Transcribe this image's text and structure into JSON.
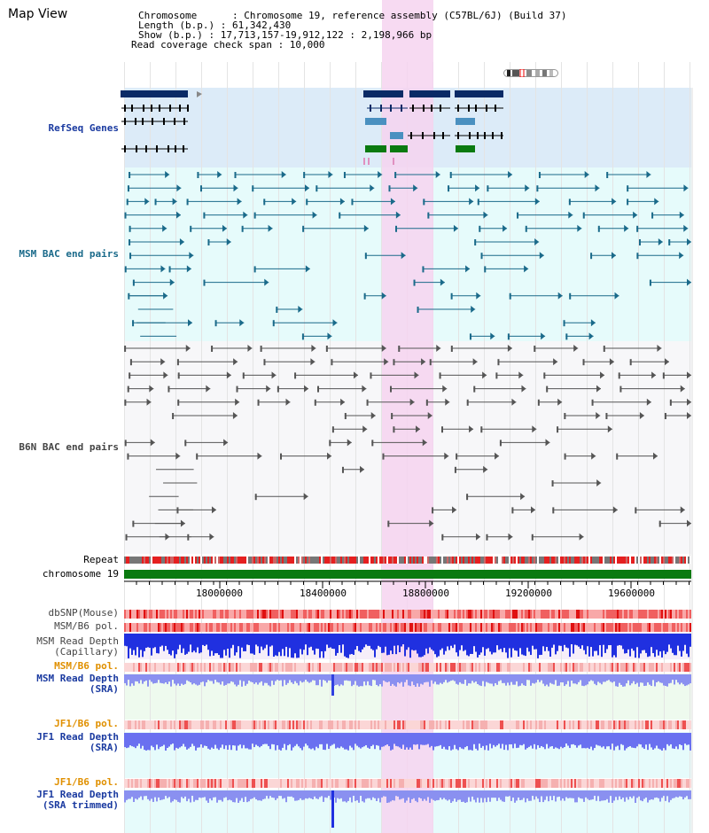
{
  "title": "Map View",
  "info": {
    "chromosome": "Chromosome      : Chromosome 19, reference assembly (C57BL/6J) (Build 37)",
    "length": "Length (b.p.) : 61,342,430",
    "show": "Show (b.p.) : 17,713,157-19,912,122 : 2,198,966 bp",
    "coverage": "Read coverage check span : 10,000"
  },
  "tracks": {
    "refseq": "RefSeq Genes",
    "msm_bac": "MSM BAC end pairs",
    "b6n_bac": "B6N BAC end pairs",
    "repeat": "Repeat",
    "chromosome": "chromosome 19",
    "dbsnp": "dbSNP(Mouse)",
    "msm_b6_pol_1": "MSM/B6 pol.",
    "msm_depth_cap_1": "MSM Read Depth",
    "msm_depth_cap_2": "(Capillary)",
    "msm_b6_pol_2": "MSM/B6 pol.",
    "msm_depth_sra_1": "MSM Read Depth",
    "msm_depth_sra_2": "(SRA)",
    "jf1_b6_pol_1": "JF1/B6 pol.",
    "jf1_depth_sra_1": "JF1 Read Depth",
    "jf1_depth_sra_2": "(SRA)",
    "jf1_b6_pol_2": "JF1/B6 pol.",
    "jf1_depth_trim_1": "JF1 Read Depth",
    "jf1_depth_trim_2": "(SRA trimmed)"
  },
  "ruler": {
    "ticks": [
      "18000000",
      "18400000",
      "18800000",
      "19200000",
      "19600000"
    ]
  },
  "colors": {
    "gene_dark": "#0a2a66",
    "gene_light": "#4a90c0",
    "gene_green": "#0a7a10",
    "msm_line": "#1a6a8a",
    "b6n_line": "#555555",
    "highlight": "#f6d4f0",
    "label_blue": "#1a3aa0",
    "label_orange": "#e09000",
    "label_teal": "#1a6a8a",
    "label_gray": "#444444"
  }
}
